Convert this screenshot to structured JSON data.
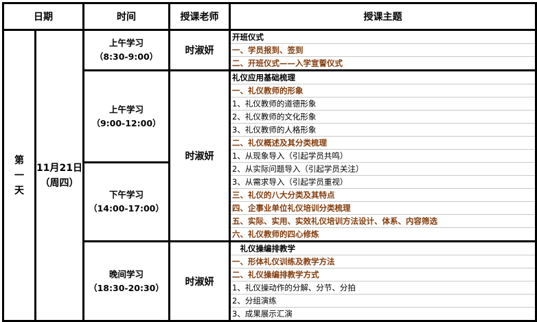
{
  "header": {
    "date": "日期",
    "time": "时间",
    "teacher": "授课老师",
    "topic": "授课主题"
  },
  "day": {
    "label_chars": [
      "第",
      "一",
      "天"
    ],
    "date": "11月21日",
    "weekday": "（周四）"
  },
  "accent_color": "#843c0c",
  "sessions": [
    {
      "time_label": "上午学习",
      "time_range": "（8:30-9:00）",
      "teacher": "时淑妍",
      "topics": [
        "开班仪式",
        "一、学员报到、签到",
        "二、开班仪式——入学宣誓仪式"
      ]
    },
    {
      "time_label": "上午学习",
      "time_range": "（9:00-12:00）",
      "teacher": "时淑妍",
      "topics": [
        "礼仪应用基础梳理",
        "一、礼仪教师的形象",
        "1、礼仪教师的道德形象",
        "2、礼仪教师的文化形象",
        "3、礼仪教师的人格形象",
        "二、礼仪概述及其分类梳理",
        "1、从现象导入（引起学员共鸣）"
      ]
    },
    {
      "time_label": "下午学习",
      "time_range": "（14:00-17:00）",
      "topics": [
        "2、从实际问题导入（引起学员关注）",
        "3、从需求导入（引起学员重视）",
        "三、礼仪的八大分类及其特点",
        "四、企事业单位礼仪培训分类梳理",
        "五、实际、实用、实效礼仪培训方法设计、体系、内容筛选",
        "六、礼仪教师的四心修炼"
      ]
    },
    {
      "time_label": "晚间学习",
      "time_range": "（18:30-20:30）",
      "teacher": "时淑妍",
      "topics": [
        "　礼仪操编排教学",
        "一、形体礼仪训练及教学方法",
        "二、礼仪操编排教学方式",
        "1、礼仪操动作的分解、分节、分拍",
        "2、分组演练",
        "3、成果展示汇演"
      ]
    }
  ]
}
